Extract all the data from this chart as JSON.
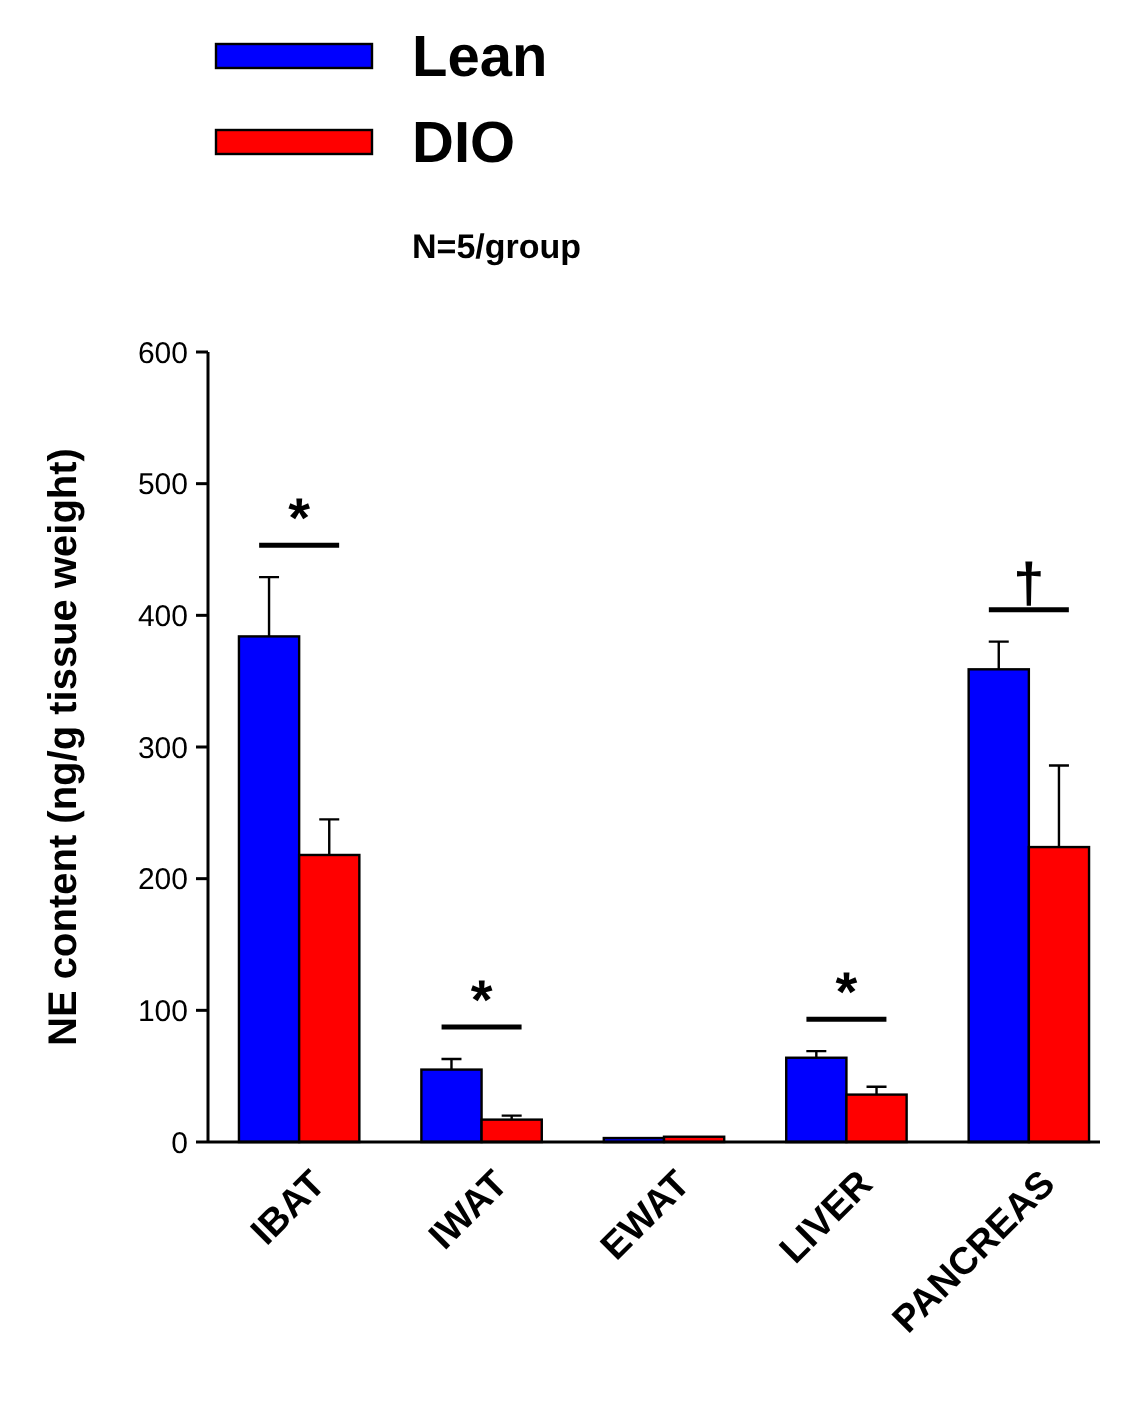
{
  "chart_data": {
    "type": "bar",
    "categories": [
      "IBAT",
      "IWAT",
      "EWAT",
      "LIVER",
      "PANCREAS"
    ],
    "ylabel": "NE content (ng/g tissue weight)",
    "ylim": [
      0,
      600
    ],
    "yticks": [
      0,
      100,
      200,
      300,
      400,
      500,
      600
    ],
    "legend": "top left",
    "annotations": [
      {
        "text": "*",
        "x": "IBAT",
        "y": 384
      },
      {
        "text": "*",
        "x": "IWAT",
        "y": 63
      },
      {
        "text": "*",
        "x": "LIVER",
        "y": 69
      },
      {
        "text": "†",
        "x": "PANCREAS",
        "y": 380
      },
      "N=5/group"
    ],
    "series": [
      {
        "name": "Lean",
        "color": "#0000ff",
        "values": [
          384,
          55,
          3,
          64,
          359
        ],
        "errors": [
          [
            384,
            429
          ],
          [
            55,
            63
          ],
          null,
          [
            64,
            69
          ],
          [
            359,
            380
          ]
        ]
      },
      {
        "name": "DIO",
        "color": "#ff0000",
        "values": [
          218,
          17,
          4,
          36,
          224
        ],
        "errors": [
          [
            218,
            245
          ],
          [
            17,
            20
          ],
          null,
          [
            36,
            42
          ],
          [
            224,
            286
          ]
        ]
      }
    ]
  }
}
